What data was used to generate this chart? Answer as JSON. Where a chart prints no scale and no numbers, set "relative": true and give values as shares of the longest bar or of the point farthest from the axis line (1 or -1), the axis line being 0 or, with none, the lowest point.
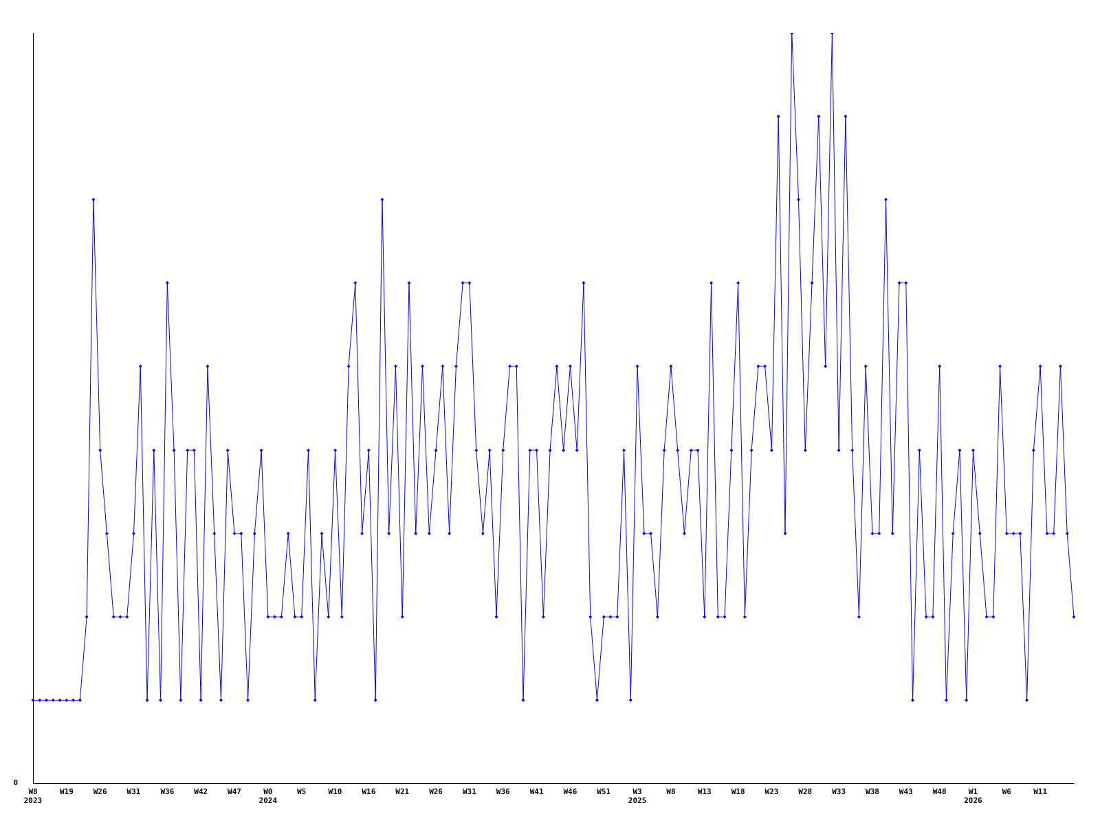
{
  "chart_data": {
    "type": "line",
    "relative": true,
    "grid": false,
    "legend": false,
    "marker": "diamond",
    "line_style": "solid",
    "annotations": [
      "0"
    ],
    "categories": [
      "W8 2023",
      null,
      null,
      null,
      null,
      "W19",
      null,
      null,
      null,
      null,
      "W26",
      null,
      null,
      null,
      null,
      "W31",
      null,
      null,
      null,
      null,
      "W36",
      null,
      null,
      null,
      null,
      "W42",
      null,
      null,
      null,
      null,
      "W47",
      null,
      null,
      null,
      null,
      "W0 2024",
      null,
      null,
      null,
      null,
      "W5",
      null,
      null,
      null,
      null,
      "W10",
      null,
      null,
      null,
      null,
      "W16",
      null,
      null,
      null,
      null,
      "W21",
      null,
      null,
      null,
      null,
      "W26",
      null,
      null,
      null,
      null,
      "W31",
      null,
      null,
      null,
      null,
      "W36",
      null,
      null,
      null,
      null,
      "W41",
      null,
      null,
      null,
      null,
      "W46",
      null,
      null,
      null,
      null,
      "W51",
      null,
      null,
      null,
      null,
      "W3 2025",
      null,
      null,
      null,
      null,
      "W8",
      null,
      null,
      null,
      null,
      "W13",
      null,
      null,
      null,
      null,
      "W18",
      null,
      null,
      null,
      null,
      "W23",
      null,
      null,
      null,
      null,
      "W28",
      null,
      null,
      null,
      null,
      "W33",
      null,
      null,
      null,
      null,
      "W38",
      null,
      null,
      null,
      null,
      "W43",
      null,
      null,
      null,
      null,
      "W48",
      null,
      null,
      null,
      null,
      "W1 2026",
      null,
      null,
      null,
      null,
      "W6",
      null,
      null,
      null,
      null,
      "W11",
      null,
      null,
      null,
      null,
      null
    ],
    "series": [
      {
        "color": "#0000ff",
        "values": [
          0.111,
          0.111,
          0.111,
          0.111,
          0.111,
          0.111,
          0.111,
          0.111,
          0.222,
          0.778,
          0.444,
          0.333,
          0.222,
          0.222,
          0.222,
          0.333,
          0.556,
          0.111,
          0.444,
          0.111,
          0.667,
          0.444,
          0.111,
          0.444,
          0.444,
          0.111,
          0.556,
          0.333,
          0.111,
          0.444,
          0.333,
          0.333,
          0.111,
          0.333,
          0.444,
          0.222,
          0.222,
          0.222,
          0.333,
          0.222,
          0.222,
          0.444,
          0.111,
          0.333,
          0.222,
          0.444,
          0.222,
          0.556,
          0.667,
          0.333,
          0.444,
          0.111,
          0.778,
          0.333,
          0.556,
          0.222,
          0.667,
          0.333,
          0.556,
          0.333,
          0.444,
          0.556,
          0.333,
          0.556,
          0.667,
          0.667,
          0.444,
          0.333,
          0.444,
          0.222,
          0.444,
          0.556,
          0.556,
          0.111,
          0.444,
          0.444,
          0.222,
          0.444,
          0.556,
          0.444,
          0.556,
          0.444,
          0.667,
          0.222,
          0.111,
          0.222,
          0.222,
          0.222,
          0.444,
          0.111,
          0.556,
          0.333,
          0.333,
          0.222,
          0.444,
          0.556,
          0.444,
          0.333,
          0.444,
          0.444,
          0.222,
          0.667,
          0.222,
          0.222,
          0.444,
          0.667,
          0.222,
          0.444,
          0.556,
          0.556,
          0.444,
          0.889,
          0.333,
          1,
          0.778,
          0.444,
          0.667,
          0.889,
          0.556,
          1,
          0.444,
          0.889,
          0.444,
          0.222,
          0.556,
          0.333,
          0.333,
          0.778,
          0.333,
          0.667,
          0.667,
          0.111,
          0.444,
          0.222,
          0.222,
          0.556,
          0.111,
          0.333,
          0.444,
          0.111,
          0.444,
          0.333,
          0.222,
          0.222,
          0.556,
          0.333,
          0.333,
          0.333,
          0.111,
          0.444,
          0.556,
          0.333,
          0.333,
          0.556,
          0.333,
          0.222
        ]
      }
    ]
  }
}
